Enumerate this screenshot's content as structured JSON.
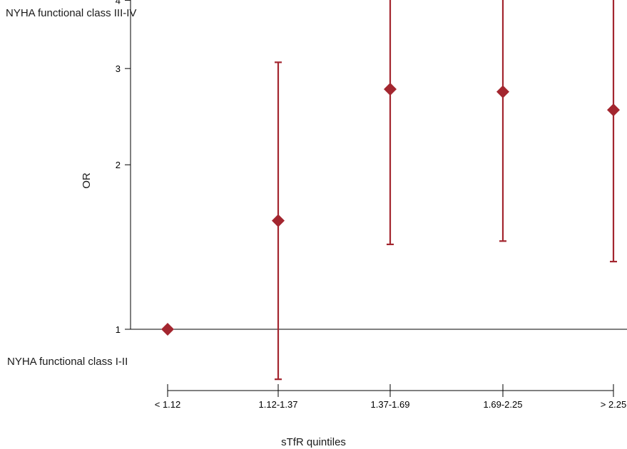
{
  "labels": {
    "top": "NYHA functional class III-IV",
    "bottom": "NYHA functional class I-II"
  },
  "chart_data": {
    "type": "scatter",
    "ylabel": "OR",
    "xlabel": "sTfR quintiles",
    "y_scale": "log",
    "ylim": [
      0.8,
      5.6
    ],
    "y_ticks": [
      1,
      2,
      3,
      4,
      5
    ],
    "reference_line": 1,
    "categories": [
      "< 1.12",
      "1.12-1.37",
      "1.37-1.69",
      "1.69-2.25",
      "> 2.25"
    ],
    "series": [
      {
        "or": [
          1.0,
          1.58,
          2.75,
          2.72,
          2.52
        ],
        "lower": [
          null,
          0.81,
          1.43,
          1.45,
          1.33
        ],
        "upper": [
          null,
          3.08,
          5.25,
          5.13,
          4.93
        ],
        "significant": [
          false,
          false,
          true,
          true,
          true
        ],
        "marker": "diamond"
      }
    ],
    "significance_marker": "*",
    "colors": {
      "point": "#a3262f",
      "axis": "#000000"
    },
    "grid": false
  }
}
